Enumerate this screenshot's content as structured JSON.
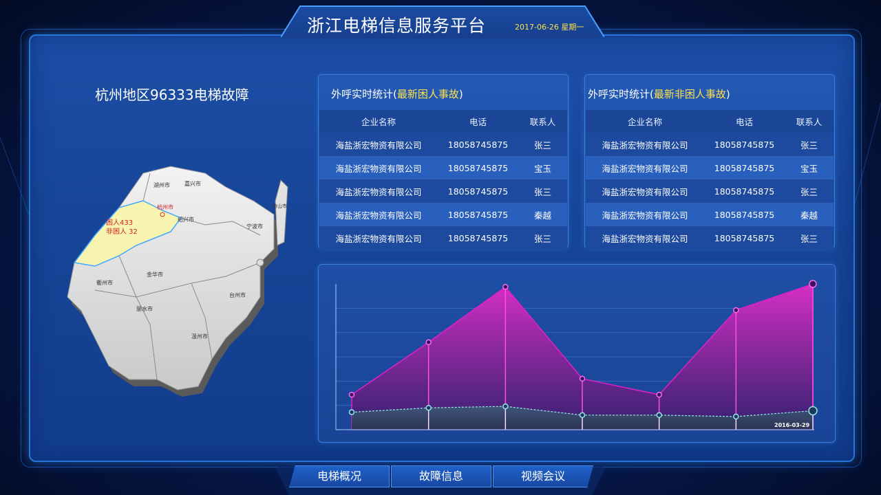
{
  "header": {
    "title": "浙江电梯信息服务平台",
    "date": "2017-06-26 星期一"
  },
  "map_section": {
    "title": "杭州地区96333电梯故障",
    "highlight_city": "杭州市",
    "trapped_label": "困人433",
    "non_trapped_label": "非困人 32",
    "cities": [
      "湖州市",
      "嘉兴市",
      "绍兴市",
      "宁波市",
      "衢州市",
      "金华市",
      "丽水市",
      "台州市",
      "温州市",
      "舟山市"
    ]
  },
  "panel_left": {
    "title_prefix": "外呼实时统计(",
    "title_highlight": "最新困人事故",
    "title_suffix": ")",
    "columns": [
      "企业名称",
      "电话",
      "联系人"
    ],
    "rows": [
      [
        "海盐浙宏物资有限公司",
        "18058745875",
        "张三"
      ],
      [
        "海盐浙宏物资有限公司",
        "18058745875",
        "宝玉"
      ],
      [
        "海盐浙宏物资有限公司",
        "18058745875",
        "张三"
      ],
      [
        "海盐浙宏物资有限公司",
        "18058745875",
        "秦越"
      ],
      [
        "海盐浙宏物资有限公司",
        "18058745875",
        "张三"
      ]
    ]
  },
  "panel_right": {
    "title_prefix": "外呼实时统计(",
    "title_highlight": "最新非困人事故",
    "title_suffix": ")",
    "columns": [
      "企业名称",
      "电话",
      "联系人"
    ],
    "rows": [
      [
        "海盐浙宏物资有限公司",
        "18058745875",
        "张三"
      ],
      [
        "海盐浙宏物资有限公司",
        "18058745875",
        "宝玉"
      ],
      [
        "海盐浙宏物资有限公司",
        "18058745875",
        "张三"
      ],
      [
        "海盐浙宏物资有限公司",
        "18058745875",
        "秦越"
      ],
      [
        "海盐浙宏物资有限公司",
        "18058745875",
        "张三"
      ]
    ]
  },
  "chart_data": {
    "type": "area",
    "x": [
      1,
      2,
      3,
      4,
      5,
      6,
      7
    ],
    "last_label": "2016-03-29",
    "ylim": [
      0,
      100
    ],
    "grid": true,
    "series": [
      {
        "values": [
          24,
          60,
          98,
          35,
          24,
          82,
          100
        ],
        "color": "#e020c8"
      },
      {
        "values": [
          12,
          15,
          16,
          10,
          10,
          9,
          13
        ],
        "color": "#9ae6e6"
      }
    ]
  },
  "nav": {
    "items": [
      "电梯概况",
      "故障信息",
      "视频会议"
    ]
  },
  "colors": {
    "accent_yellow": "#ffe24a",
    "frame_blue": "#1b4ea6",
    "area_magenta": "#e020c8"
  }
}
